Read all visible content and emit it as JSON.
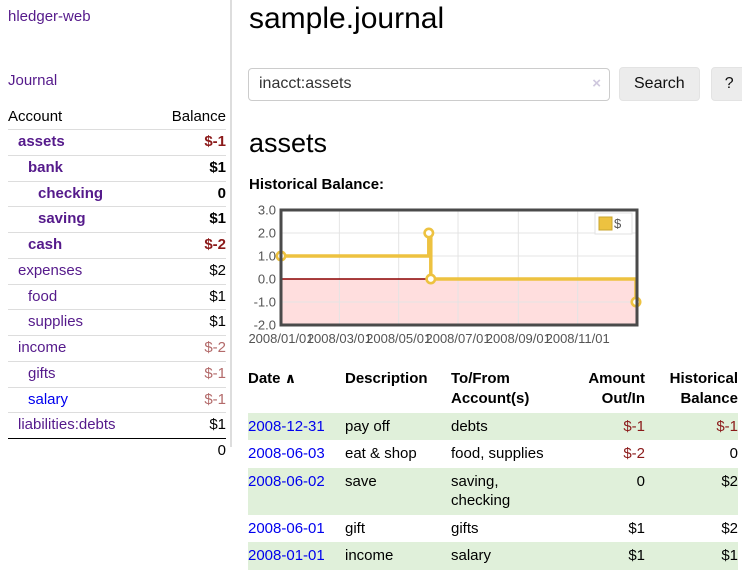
{
  "sidebar": {
    "brand": "hledger-web",
    "nav": [
      {
        "label": "Journal"
      }
    ],
    "accounts_table": {
      "headers": [
        "Account",
        "Balance"
      ],
      "rows": [
        {
          "name": "assets",
          "indent": 0,
          "bold": true,
          "name_color": "purple",
          "balance": "$-1",
          "balance_color": "neg-strong"
        },
        {
          "name": "bank",
          "indent": 1,
          "bold": true,
          "name_color": "purple",
          "balance": "$1",
          "balance_color": "normal"
        },
        {
          "name": "checking",
          "indent": 2,
          "bold": true,
          "name_color": "purple",
          "balance": "0",
          "balance_color": "normal"
        },
        {
          "name": "saving",
          "indent": 2,
          "bold": true,
          "name_color": "purple",
          "balance": "$1",
          "balance_color": "normal"
        },
        {
          "name": "cash",
          "indent": 1,
          "bold": true,
          "name_color": "purple",
          "balance": "$-2",
          "balance_color": "neg-strong"
        },
        {
          "name": "expenses",
          "indent": 0,
          "bold": false,
          "name_color": "purple",
          "balance": "$2",
          "balance_color": "normal"
        },
        {
          "name": "food",
          "indent": 1,
          "bold": false,
          "name_color": "purple",
          "balance": "$1",
          "balance_color": "normal"
        },
        {
          "name": "supplies",
          "indent": 1,
          "bold": false,
          "name_color": "purple",
          "balance": "$1",
          "balance_color": "normal"
        },
        {
          "name": "income",
          "indent": 0,
          "bold": false,
          "name_color": "purple",
          "balance": "$-2",
          "balance_color": "neg-muted"
        },
        {
          "name": "gifts",
          "indent": 1,
          "bold": false,
          "name_color": "purple",
          "balance": "$-1",
          "balance_color": "neg-muted"
        },
        {
          "name": "salary",
          "indent": 1,
          "bold": false,
          "name_color": "blue",
          "balance": "$-1",
          "balance_color": "neg-muted"
        },
        {
          "name": "liabilities:debts",
          "indent": 0,
          "bold": false,
          "name_color": "purple",
          "balance": "$1",
          "balance_color": "normal"
        }
      ],
      "total": "0"
    }
  },
  "header": {
    "title": "sample.journal"
  },
  "search": {
    "value": "inacct:assets",
    "clear_icon": "×",
    "button": "Search",
    "help_button": "?"
  },
  "account_page": {
    "title": "assets",
    "chart_label": "Historical Balance:"
  },
  "chart_data": {
    "type": "line",
    "step": true,
    "title": "Historical Balance",
    "series": [
      {
        "name": "$",
        "color": "#edc240",
        "points": [
          {
            "x": "2008/01/01",
            "y": 1
          },
          {
            "x": "2008/06/01",
            "y": 2
          },
          {
            "x": "2008/06/03",
            "y": 0
          },
          {
            "x": "2008/12/31",
            "y": -1
          }
        ]
      }
    ],
    "point_days": [
      0,
      152,
      154,
      365
    ],
    "x_ticks": [
      "2008/01/01",
      "2008/03/01",
      "2008/05/01",
      "2008/07/01",
      "2008/09/01",
      "2008/11/01"
    ],
    "x_tick_days": [
      0,
      60,
      121,
      182,
      244,
      305
    ],
    "xlim_days": [
      0,
      366
    ],
    "y_ticks": [
      "3.0",
      "2.0",
      "1.0",
      "0.0",
      "-1.0",
      "-2.0"
    ],
    "ylim": [
      -2,
      3
    ],
    "grid": true,
    "negative_region_color": "rgba(255,0,0,0.13)",
    "zero_line_color": "#8b0000",
    "axis_text_color": "#545454",
    "border_color": "#4a4a4a",
    "grid_color": "#e4e4e4",
    "legend": {
      "label": "$",
      "position": "top-right"
    }
  },
  "register": {
    "headers": [
      "Date",
      "Description",
      "To/From Account(s)",
      "Amount Out/In",
      "Historical Balance"
    ],
    "sort_icon": "∧",
    "rows": [
      {
        "date": "2008-12-31",
        "description": "pay off",
        "accounts": "debts",
        "amount": "$-1",
        "amount_neg": true,
        "balance": "$-1",
        "balance_neg": true
      },
      {
        "date": "2008-06-03",
        "description": "eat & shop",
        "accounts": "food, supplies",
        "amount": "$-2",
        "amount_neg": true,
        "balance": "0",
        "balance_neg": false
      },
      {
        "date": "2008-06-02",
        "description": "save",
        "accounts": "saving, checking",
        "amount": "0",
        "amount_neg": false,
        "balance": "$2",
        "balance_neg": false
      },
      {
        "date": "2008-06-01",
        "description": "gift",
        "accounts": "gifts",
        "amount": "$1",
        "amount_neg": false,
        "balance": "$2",
        "balance_neg": false
      },
      {
        "date": "2008-01-01",
        "description": "income",
        "accounts": "salary",
        "amount": "$1",
        "amount_neg": false,
        "balance": "$1",
        "balance_neg": false
      }
    ]
  }
}
